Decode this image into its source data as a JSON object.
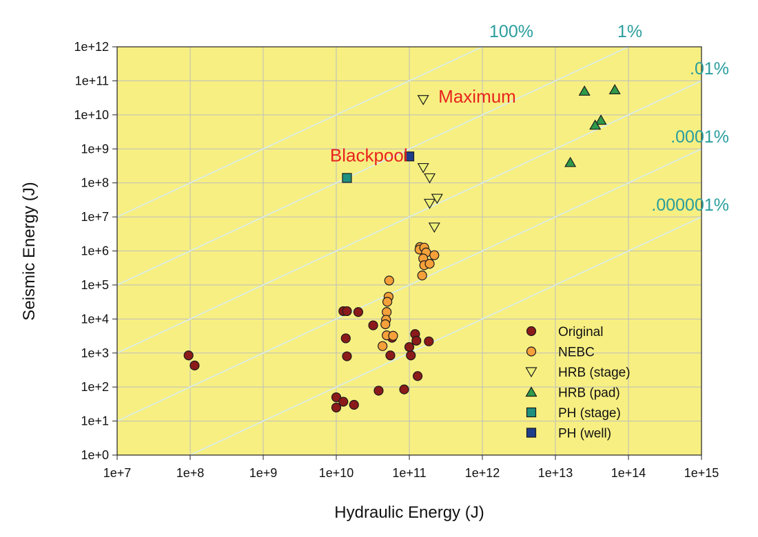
{
  "chart_data": {
    "type": "scatter",
    "xlabel": "Hydraulic Energy (J)",
    "ylabel": "Seismic Energy (J)",
    "x_scale": "log",
    "y_scale": "log",
    "xlim": [
      10000000.0,
      1000000000000000.0
    ],
    "ylim": [
      1,
      1000000000000.0
    ],
    "x_ticks": [
      10000000.0,
      100000000.0,
      1000000000.0,
      10000000000.0,
      100000000000.0,
      1000000000000.0,
      10000000000000.0,
      100000000000000.0,
      1000000000000000.0
    ],
    "x_tick_labels": [
      "1e+7",
      "1e+8",
      "1e+9",
      "1e+10",
      "1e+11",
      "1e+12",
      "1e+13",
      "1e+14",
      "1e+15"
    ],
    "y_ticks": [
      1,
      10,
      100,
      1000,
      10000.0,
      100000.0,
      1000000.0,
      10000000.0,
      100000000.0,
      1000000000.0,
      10000000000.0,
      100000000000.0,
      1000000000000.0
    ],
    "y_tick_labels": [
      "1e+0",
      "1e+1",
      "1e+2",
      "1e+3",
      "1e+4",
      "1e+5",
      "1e+6",
      "1e+7",
      "1e+8",
      "1e+9",
      "1e+10",
      "1e+11",
      "1e+12"
    ],
    "grid": true,
    "background_color": "#f7ef82",
    "ratio_lines": [
      {
        "label": "100%",
        "ratio": 1
      },
      {
        "label": "1%",
        "ratio": 0.01
      },
      {
        "label": ".01%",
        "ratio": 0.0001
      },
      {
        "label": ".0001%",
        "ratio": 1e-06
      },
      {
        "label": ".000001%",
        "ratio": 1e-08
      }
    ],
    "annotations": [
      {
        "text": "Maximum",
        "x": 250000000000.0,
        "y": 35000000000.0
      },
      {
        "text": "Blackpool",
        "x": 95000000000.0,
        "y": 650000000.0
      }
    ],
    "legend_position": "bottom-right",
    "series": [
      {
        "name": "Original",
        "marker": "circle",
        "color": "#8b1a1a",
        "points": [
          [
            95000000.0,
            850
          ],
          [
            115000000.0,
            430
          ],
          [
            12500000000.0,
            17000
          ],
          [
            14000000000.0,
            17000
          ],
          [
            20000000000.0,
            16000
          ],
          [
            13500000000.0,
            2700
          ],
          [
            14000000000.0,
            800
          ],
          [
            32000000000.0,
            6500
          ],
          [
            58000000000.0,
            2800
          ],
          [
            55000000000.0,
            850
          ],
          [
            100000000000.0,
            1500
          ],
          [
            105000000000.0,
            850
          ],
          [
            120000000000.0,
            3600
          ],
          [
            125000000000.0,
            2300
          ],
          [
            185000000000.0,
            2200
          ],
          [
            130000000000.0,
            210
          ],
          [
            10000000000.0,
            50
          ],
          [
            12500000000.0,
            37
          ],
          [
            10000000000.0,
            25
          ],
          [
            17500000000.0,
            30
          ],
          [
            38000000000.0,
            78
          ],
          [
            85000000000.0,
            85
          ]
        ]
      },
      {
        "name": "NEBC",
        "marker": "circle",
        "color": "#f5a03a",
        "points": [
          [
            53000000000.0,
            135000
          ],
          [
            52000000000.0,
            45000
          ],
          [
            50000000000.0,
            32000
          ],
          [
            49000000000.0,
            16000
          ],
          [
            48000000000.0,
            9500
          ],
          [
            47000000000.0,
            7000
          ],
          [
            49000000000.0,
            3300
          ],
          [
            60000000000.0,
            3200
          ],
          [
            43000000000.0,
            1600
          ],
          [
            140000000000.0,
            1300000
          ],
          [
            138000000000.0,
            1100000
          ],
          [
            160000000000.0,
            1250000
          ],
          [
            170000000000.0,
            900000
          ],
          [
            155000000000.0,
            600000
          ],
          [
            220000000000.0,
            750000
          ],
          [
            160000000000.0,
            380000
          ],
          [
            190000000000.0,
            420000
          ],
          [
            150000000000.0,
            190000
          ]
        ]
      },
      {
        "name": "HRB (stage)",
        "marker": "triangle-down",
        "color": "#eef07a",
        "points": [
          [
            155000000000.0,
            28000000000.0
          ],
          [
            155000000000.0,
            280000000.0
          ],
          [
            190000000000.0,
            140000000.0
          ],
          [
            190000000000.0,
            25000000.0
          ],
          [
            240000000000.0,
            35000000.0
          ],
          [
            220000000000.0,
            5000000.0
          ]
        ]
      },
      {
        "name": "HRB (pad)",
        "marker": "triangle-up",
        "color": "#2e9a4a",
        "points": [
          [
            25000000000000.0,
            50000000000.0
          ],
          [
            65000000000000.0,
            55000000000.0
          ],
          [
            42000000000000.0,
            7000000000.0
          ],
          [
            35000000000000.0,
            5000000000.0
          ],
          [
            16000000000000.0,
            400000000.0
          ]
        ]
      },
      {
        "name": "PH (stage)",
        "marker": "square",
        "color": "#1f8f7f",
        "points": [
          [
            14000000000.0,
            140000000.0
          ]
        ]
      },
      {
        "name": "PH (well)",
        "marker": "square",
        "color": "#1d3e8a",
        "points": [
          [
            100000000000.0,
            600000000.0
          ]
        ]
      }
    ]
  }
}
